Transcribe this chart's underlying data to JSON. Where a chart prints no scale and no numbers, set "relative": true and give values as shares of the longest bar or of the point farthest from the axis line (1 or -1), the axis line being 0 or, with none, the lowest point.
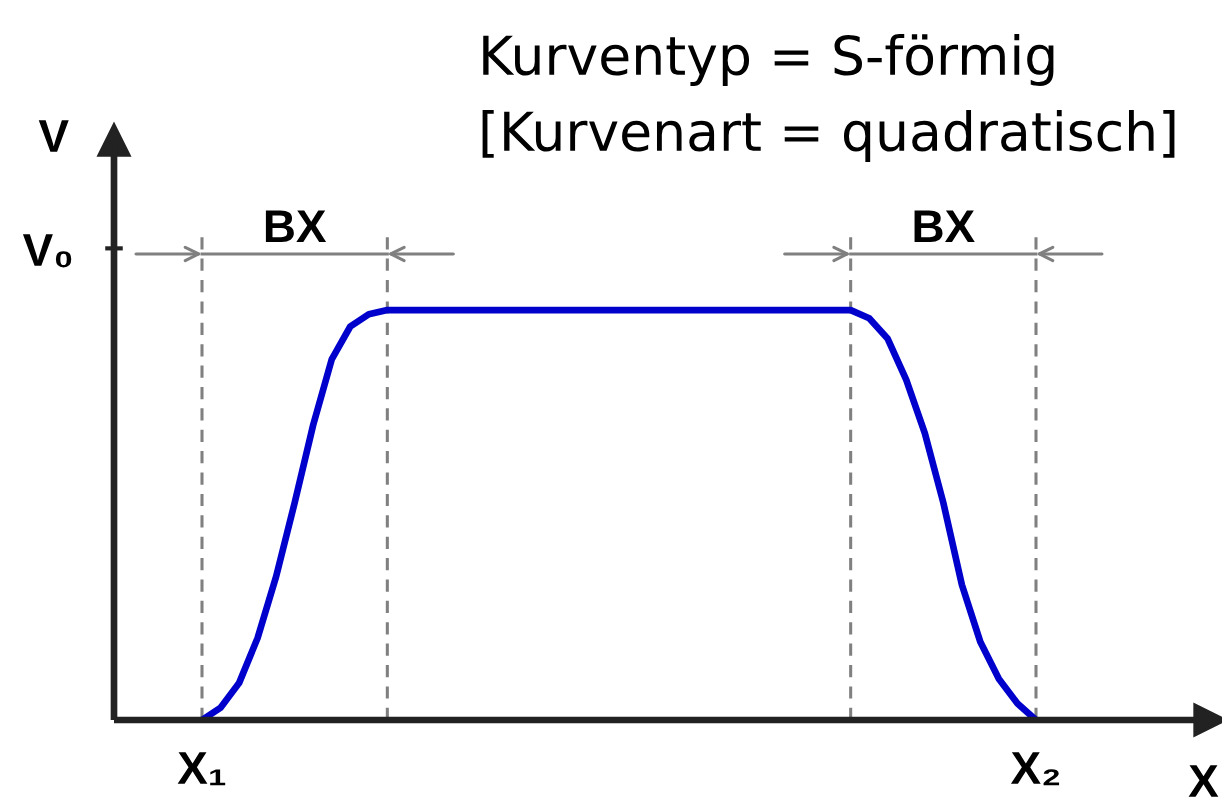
{
  "chart_data": {
    "type": "line",
    "title": "Kurventyp = S-förmig",
    "subtitle": "[Kurvenart = quadratisch]",
    "xlabel": "X",
    "ylabel": "V",
    "relative": true,
    "grid": "x",
    "categories": [
      "X₁",
      null,
      null,
      null,
      null,
      null,
      null,
      null,
      null,
      null,
      null,
      null,
      null,
      null,
      null,
      null,
      null,
      null,
      null,
      null,
      null,
      null,
      null,
      null,
      null,
      null,
      null,
      null,
      null,
      null,
      null,
      null,
      null,
      null,
      null,
      null,
      null,
      null,
      null,
      null,
      null,
      null,
      null,
      null,
      null,
      "X₂"
    ],
    "series": [
      {
        "color": "#0000cc",
        "values": [
          0,
          0.03,
          0.09,
          0.2,
          0.35,
          0.53,
          0.72,
          0.88,
          0.96,
          0.99,
          1,
          1,
          1,
          1,
          1,
          1,
          1,
          1,
          1,
          1,
          1,
          1,
          1,
          1,
          1,
          1,
          1,
          1,
          1,
          1,
          1,
          1,
          1,
          1,
          1,
          1,
          0.98,
          0.93,
          0.83,
          0.7,
          0.53,
          0.33,
          0.19,
          0.1,
          0.04,
          0
        ]
      }
    ],
    "annotations": [
      "V₀",
      "BX",
      "BX"
    ]
  }
}
